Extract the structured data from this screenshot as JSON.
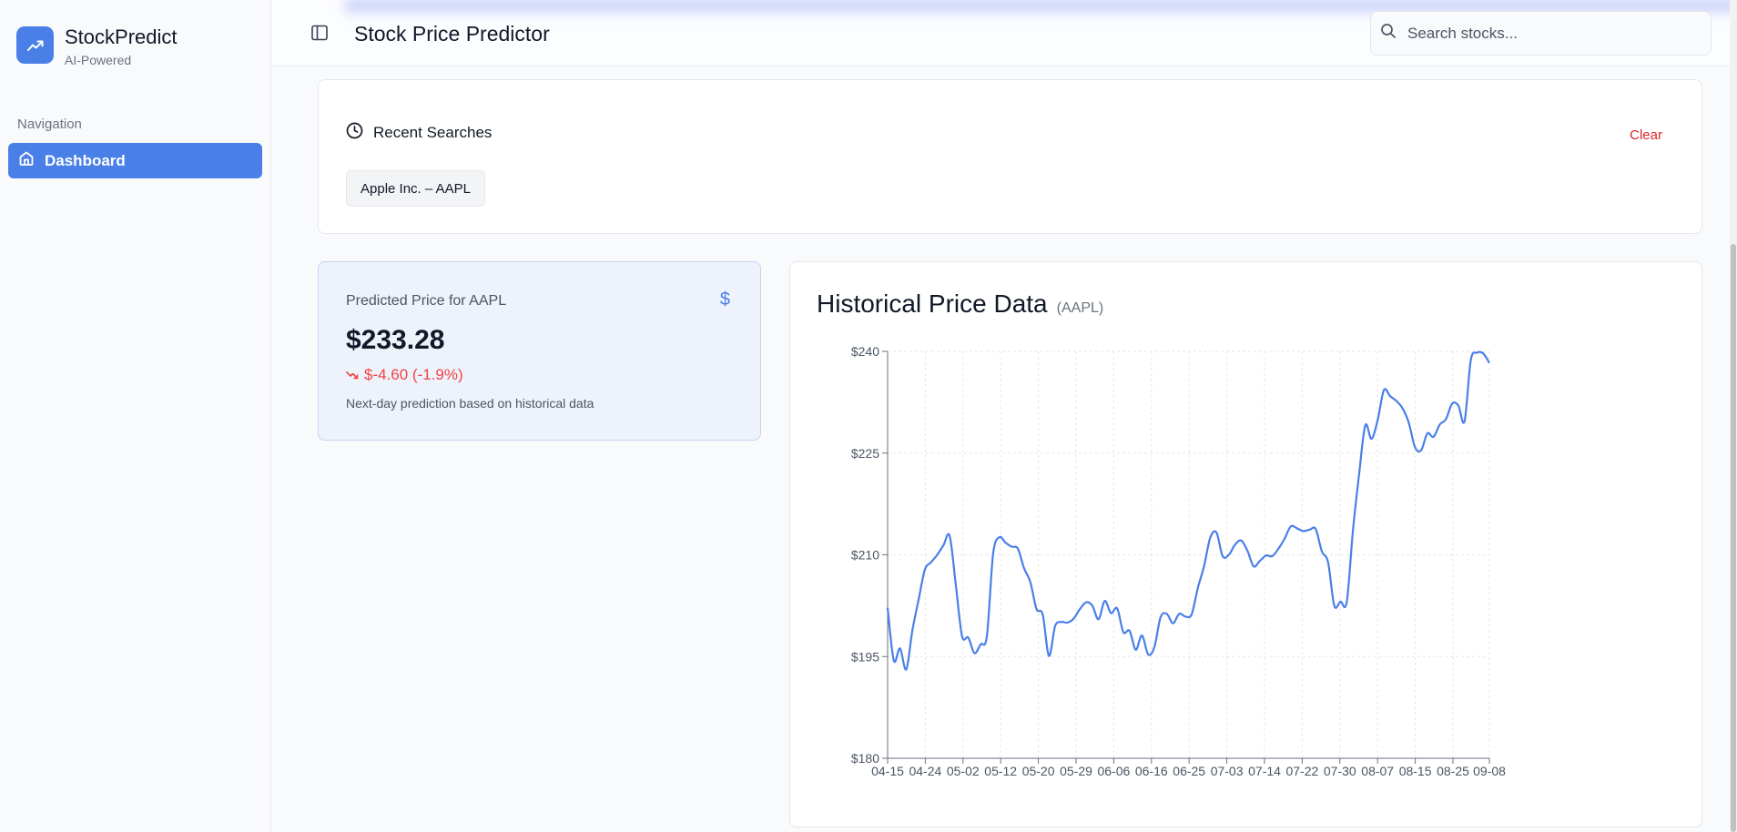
{
  "brand": {
    "name": "StockPredict",
    "subtitle": "AI-Powered",
    "logo_icon": "trending-up-icon"
  },
  "sidebar": {
    "section_label": "Navigation",
    "items": [
      {
        "label": "Dashboard",
        "icon": "home-icon",
        "active": true
      }
    ]
  },
  "header": {
    "title": "Stock Price Predictor",
    "search_placeholder": "Search stocks..."
  },
  "recent": {
    "title": "Recent Searches",
    "clear_label": "Clear",
    "chips": [
      "Apple Inc. – AAPL"
    ]
  },
  "prediction": {
    "label": "Predicted Price for AAPL",
    "value": "$233.28",
    "change": "$-4.60 (-1.9%)",
    "note": "Next-day prediction based on historical data"
  },
  "colors": {
    "accent": "#4a7fe8",
    "danger": "#dc2626",
    "negative": "#ef4444"
  },
  "chart_data": {
    "type": "line",
    "title": "Historical Price Data",
    "subtitle": "(AAPL)",
    "ylim": [
      180,
      240
    ],
    "y_ticks": [
      "$180",
      "$195",
      "$210",
      "$225",
      "$240"
    ],
    "x_ticks": [
      "04-15",
      "04-24",
      "05-02",
      "05-12",
      "05-20",
      "05-29",
      "06-06",
      "06-16",
      "06-25",
      "07-03",
      "07-14",
      "07-22",
      "07-30",
      "08-07",
      "08-15",
      "08-25",
      "09-08"
    ],
    "grid": true,
    "series": [
      {
        "values": [
          202.2,
          194.4,
          196.2,
          193.1,
          198.9,
          203.4,
          207.8,
          208.9,
          210.0,
          211.4,
          212.8,
          205.5,
          198.0,
          197.8,
          195.5,
          196.8,
          198.0,
          210.1,
          212.6,
          211.8,
          211.2,
          210.9,
          208.0,
          206.0,
          202.0,
          201.2,
          195.1,
          199.5,
          200.1,
          200.0,
          200.6,
          202.0,
          203.0,
          202.5,
          200.5,
          203.2,
          201.4,
          202.1,
          198.6,
          198.8,
          196.0,
          198.1,
          195.3,
          196.4,
          200.8,
          201.3,
          199.9,
          201.3,
          200.9,
          201.2,
          205.1,
          208.3,
          212.5,
          213.3,
          209.8,
          210.0,
          211.5,
          212.1,
          210.6,
          208.3,
          209.1,
          209.9,
          209.8,
          210.9,
          212.4,
          214.2,
          213.9,
          213.5,
          213.7,
          213.8,
          210.5,
          208.9,
          202.5,
          203.1,
          203.0,
          213.5,
          221.9,
          229.1,
          227.1,
          229.9,
          234.3,
          233.4,
          232.7,
          231.6,
          229.5,
          225.9,
          225.4,
          227.9,
          227.4,
          229.2,
          230.0,
          232.3,
          232.0,
          229.7,
          238.7,
          239.8,
          239.7,
          238.3
        ]
      }
    ]
  }
}
